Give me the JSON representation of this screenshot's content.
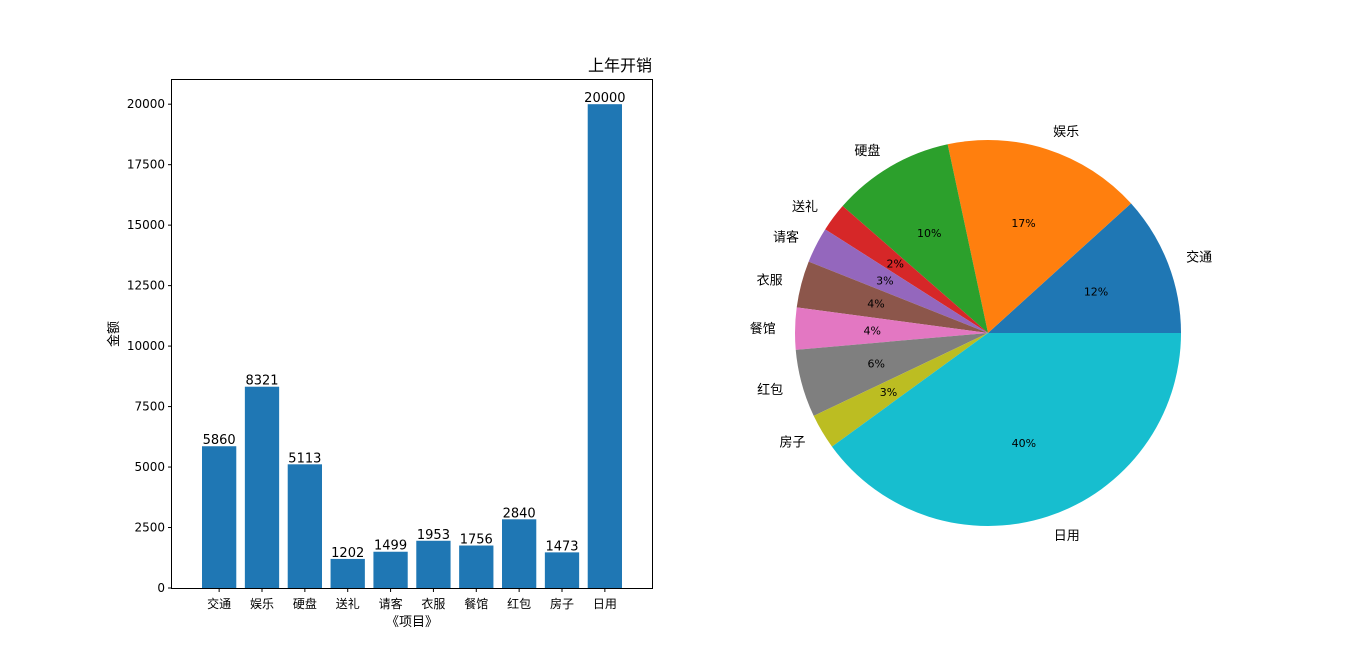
{
  "chart_data": [
    {
      "type": "bar",
      "title": "上年开销",
      "xlabel": "《项目》",
      "ylabel": "金额",
      "categories": [
        "交通",
        "娱乐",
        "硬盘",
        "送礼",
        "请客",
        "衣服",
        "餐馆",
        "红包",
        "房子",
        "日用"
      ],
      "values": [
        5860,
        8321,
        5113,
        1202,
        1499,
        1953,
        1756,
        2840,
        1473,
        20000
      ],
      "yticks": [
        0,
        2500,
        5000,
        7500,
        10000,
        12500,
        15000,
        17500,
        20000
      ],
      "ylim": [
        0,
        21000
      ],
      "bar_color": "#1f77b4",
      "grid": false,
      "data_labels": true
    },
    {
      "type": "pie",
      "labels": [
        "交通",
        "娱乐",
        "硬盘",
        "送礼",
        "请客",
        "衣服",
        "餐馆",
        "红包",
        "房子",
        "日用"
      ],
      "values": [
        5860,
        8321,
        5113,
        1202,
        1499,
        1953,
        1756,
        2840,
        1473,
        20000
      ],
      "percent_labels": [
        "12%",
        "17%",
        "10%",
        "2%",
        "3%",
        "4%",
        "4%",
        "6%",
        "3%",
        "40%"
      ],
      "colors": [
        "#1f77b4",
        "#ff7f0e",
        "#2ca02c",
        "#d62728",
        "#9467bd",
        "#8c564b",
        "#e377c2",
        "#7f7f7f",
        "#bcbd22",
        "#17becf"
      ],
      "start_angle_deg": 0,
      "direction": "counterclockwise"
    }
  ]
}
